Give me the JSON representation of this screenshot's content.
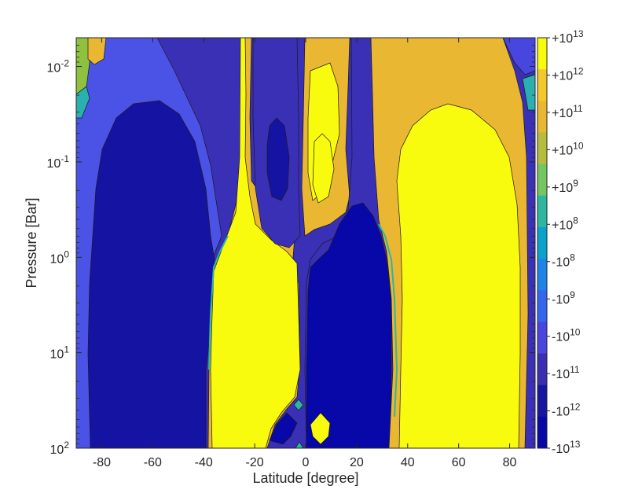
{
  "chart_data": {
    "type": "heatmap",
    "plot_style": "filled contour",
    "xlabel": "Latitude [degree]",
    "ylabel": "Pressure [Bar]",
    "xlim": [
      -90,
      90
    ],
    "ylim": [
      0.005,
      100
    ],
    "y_scale": "log",
    "y_direction": "reversed",
    "x_ticks": [
      {
        "value": -80,
        "label": "-80"
      },
      {
        "value": -60,
        "label": "-60"
      },
      {
        "value": -40,
        "label": "-40"
      },
      {
        "value": -20,
        "label": "-20"
      },
      {
        "value": 0,
        "label": "0"
      },
      {
        "value": 20,
        "label": "20"
      },
      {
        "value": 40,
        "label": "40"
      },
      {
        "value": 60,
        "label": "60"
      },
      {
        "value": 80,
        "label": "80"
      }
    ],
    "y_ticks": [
      {
        "value": 0.01,
        "base": "10",
        "exp": "-2"
      },
      {
        "value": 0.1,
        "base": "10",
        "exp": "-1"
      },
      {
        "value": 1,
        "base": "10",
        "exp": "0"
      },
      {
        "value": 10,
        "base": "10",
        "exp": "1"
      },
      {
        "value": 100,
        "base": "10",
        "exp": "2"
      }
    ],
    "colorbar": {
      "levels": [
        {
          "base": "+10",
          "exp": "13"
        },
        {
          "base": "+10",
          "exp": "12"
        },
        {
          "base": "+10",
          "exp": "11"
        },
        {
          "base": "+10",
          "exp": "10"
        },
        {
          "base": "+10",
          "exp": "9"
        },
        {
          "base": "+10",
          "exp": "8"
        },
        {
          "base": "-10",
          "exp": "8"
        },
        {
          "base": "-10",
          "exp": "9"
        },
        {
          "base": "-10",
          "exp": "10"
        },
        {
          "base": "-10",
          "exp": "11"
        },
        {
          "base": "-10",
          "exp": "12"
        },
        {
          "base": "-10",
          "exp": "13"
        }
      ],
      "colors_top_to_bottom": [
        "#f9fb0e",
        "#f3c82b",
        "#e9b731",
        "#b5bd3a",
        "#74c662",
        "#2cb7a0",
        "#08a2cd",
        "#1e84e8",
        "#3367f0",
        "#4747e0",
        "#3a2fb0",
        "#1716a0",
        "#0808a8"
      ]
    },
    "regions": [
      {
        "sign": "negative",
        "lat_range": [
          -88,
          -38
        ],
        "pressure_range": [
          0.022,
          100
        ],
        "peak": "-10^13"
      },
      {
        "sign": "positive",
        "lat_range": [
          -35,
          -3
        ],
        "pressure_range": [
          0.2,
          100
        ],
        "peak": "+10^13"
      },
      {
        "sign": "negative",
        "lat_range": [
          2,
          36
        ],
        "pressure_range": [
          0.25,
          100
        ],
        "peak": "-10^13"
      },
      {
        "sign": "positive",
        "lat_range": [
          37,
          88
        ],
        "pressure_range": [
          0.022,
          100
        ],
        "peak": "+10^13"
      },
      {
        "sign": "negative",
        "lat_range": [
          -13,
          -6
        ],
        "pressure_range": [
          0.055,
          0.35
        ],
        "peak": "-10^13"
      },
      {
        "sign": "positive",
        "lat_range": [
          4,
          11
        ],
        "pressure_range": [
          0.06,
          0.3
        ],
        "peak": "+10^13"
      }
    ]
  }
}
